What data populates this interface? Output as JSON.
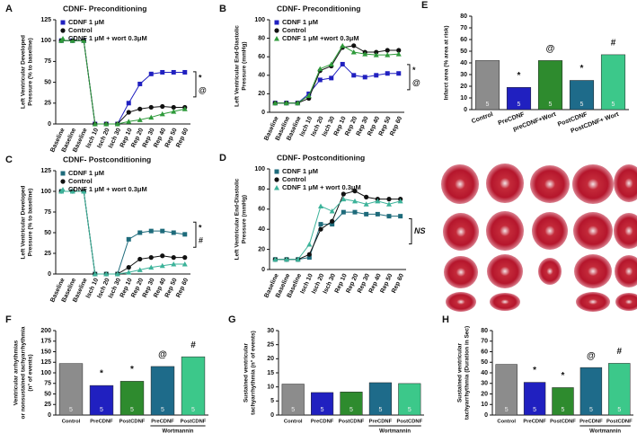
{
  "chart_data": [
    {
      "type": "line",
      "panel": "A",
      "title": "CDNF- Preconditioning",
      "ylabel": [
        "Left Ventricular Developed",
        "Pressure (% to baseline)"
      ],
      "categories": [
        "Baseline",
        "Baseline",
        "Baseline",
        "Isch 10",
        "Isch 20",
        "Isch 30",
        "Rep 10",
        "Rep 20",
        "Rep 30",
        "Rep 40",
        "Rep 50",
        "Rep 60"
      ],
      "series": [
        {
          "name": "CDNF 1 μM",
          "color": "#2020c0",
          "marker": "square",
          "values": [
            100,
            100,
            100,
            0,
            0,
            0,
            25,
            48,
            60,
            62,
            62,
            62
          ]
        },
        {
          "name": "Control",
          "color": "#111111",
          "marker": "circle",
          "values": [
            100,
            100,
            100,
            0,
            0,
            0,
            14,
            18,
            20,
            21,
            20,
            20
          ]
        },
        {
          "name": "CDNF 1 μM + wort 0.3μM",
          "color": "#2e9a3a",
          "marker": "triangle",
          "values": [
            100,
            100,
            100,
            0,
            0,
            0,
            3,
            5,
            8,
            12,
            15,
            18
          ]
        }
      ],
      "ylim": [
        0,
        125
      ],
      "yticks": [
        0,
        25,
        50,
        75,
        100,
        125
      ],
      "legend": "top-left",
      "annotations": [
        "*",
        "@"
      ]
    },
    {
      "type": "line",
      "panel": "B",
      "title": "CDNF- Preconditioning",
      "ylabel": [
        "Left Ventricular End-Diastolic",
        "Pressure (mmHg)"
      ],
      "categories": [
        "Baseline",
        "Baseline",
        "Baseline",
        "Isch 10",
        "Isch 20",
        "Isch 30",
        "Rep 10",
        "Rep 20",
        "Rep 30",
        "Rep 40",
        "Rep 50",
        "Rep 60"
      ],
      "series": [
        {
          "name": "CDNF 1 μM",
          "color": "#2020c0",
          "marker": "square",
          "values": [
            10,
            10,
            10,
            20,
            35,
            37,
            52,
            40,
            38,
            40,
            42,
            42
          ]
        },
        {
          "name": "Control",
          "color": "#111111",
          "marker": "circle",
          "values": [
            10,
            10,
            10,
            15,
            45,
            50,
            70,
            72,
            65,
            65,
            67,
            67
          ]
        },
        {
          "name": "CDNF 1 μM +wort 0.3μM",
          "color": "#2e9a3a",
          "marker": "triangle",
          "values": [
            10,
            10,
            10,
            18,
            47,
            52,
            72,
            65,
            63,
            62,
            62,
            63
          ]
        }
      ],
      "ylim": [
        0,
        100
      ],
      "yticks": [
        0,
        20,
        40,
        60,
        80,
        100
      ],
      "legend": "top-left",
      "annotations": [
        "*",
        "@"
      ]
    },
    {
      "type": "bar",
      "panel": "E",
      "ylabel": [
        "Infarct area (% area at risk)"
      ],
      "categories": [
        "Control",
        "PreCDNF",
        "preCDNF+Wort",
        "PostCDNF",
        "PostCDNF+ Wort"
      ],
      "values": [
        42,
        19,
        42,
        25,
        47
      ],
      "colors": [
        "#8c8c8c",
        "#2020c0",
        "#2e8b2e",
        "#1e6b8a",
        "#3cc88a"
      ],
      "n": [
        5,
        5,
        5,
        5,
        5
      ],
      "bar_annotations": [
        null,
        "*",
        "@",
        "*",
        "#"
      ],
      "ylim": [
        0,
        80
      ],
      "yticks": [
        0,
        10,
        20,
        30,
        40,
        50,
        60,
        70,
        80
      ],
      "rotate_labels": true
    },
    {
      "type": "line",
      "panel": "C",
      "title": "CDNF- Postconditioning",
      "ylabel": [
        "Left Ventricular Developed",
        "Pressure (% to baseline)"
      ],
      "categories": [
        "Baseline",
        "Baseline",
        "Baseline",
        "Isch 10",
        "Isch 20",
        "Isch 30",
        "Rep 10",
        "Rep 20",
        "Rep 30",
        "Rep 40",
        "Rep 50",
        "Rep 60"
      ],
      "series": [
        {
          "name": "CDNF 1 μM",
          "color": "#1e6b7b",
          "marker": "square",
          "values": [
            100,
            100,
            100,
            0,
            0,
            0,
            42,
            50,
            52,
            52,
            50,
            48
          ]
        },
        {
          "name": "Control",
          "color": "#111111",
          "marker": "circle",
          "values": [
            100,
            100,
            100,
            0,
            0,
            0,
            8,
            18,
            20,
            22,
            20,
            20
          ]
        },
        {
          "name": "CDNF 1 μM + wort 0.3μM",
          "color": "#3cb39a",
          "marker": "triangle",
          "values": [
            100,
            100,
            100,
            0,
            0,
            0,
            2,
            5,
            8,
            10,
            12,
            12
          ]
        }
      ],
      "ylim": [
        0,
        125
      ],
      "yticks": [
        0,
        25,
        50,
        75,
        100,
        125
      ],
      "legend": "top-left",
      "annotations": [
        "*",
        "#"
      ]
    },
    {
      "type": "line",
      "panel": "D",
      "title": "CDNF- Postconditioning",
      "ylabel": [
        "Left Ventricular End-Diastolic",
        "Pressure (mmHg)"
      ],
      "categories": [
        "Baseline",
        "Baseline",
        "Baseline",
        "Isch 10",
        "Isch 20",
        "Isch 30",
        "Rep 10",
        "Rep 20",
        "Rep 30",
        "Rep 40",
        "Rep 50",
        "Rep 60"
      ],
      "series": [
        {
          "name": "CDNF 1 μM",
          "color": "#1e6b7b",
          "marker": "square",
          "values": [
            10,
            10,
            10,
            12,
            45,
            45,
            57,
            57,
            55,
            55,
            53,
            53
          ]
        },
        {
          "name": "Control",
          "color": "#111111",
          "marker": "circle",
          "values": [
            10,
            10,
            10,
            15,
            40,
            48,
            75,
            78,
            72,
            70,
            70,
            70
          ]
        },
        {
          "name": "CDNF 1 μM + wort 0.3μM",
          "color": "#3cb39a",
          "marker": "triangle",
          "values": [
            10,
            10,
            10,
            25,
            63,
            58,
            70,
            68,
            65,
            68,
            65,
            68
          ]
        }
      ],
      "ylim": [
        0,
        100
      ],
      "yticks": [
        0,
        20,
        40,
        60,
        80,
        100
      ],
      "legend": "top-left",
      "annotations": [
        "NS"
      ]
    },
    {
      "type": "bar",
      "panel": "F",
      "ylabel": [
        "Ventricular arrhythmias",
        "or nonsustained tachyarrhythmia",
        "(n° of events)"
      ],
      "categories": [
        "Control",
        "PreCDNF",
        "PostCDNF",
        "PreCDNF",
        "PostCDNF"
      ],
      "group_label": "Wortmannin",
      "values": [
        122,
        70,
        80,
        115,
        138
      ],
      "colors": [
        "#8c8c8c",
        "#2020c0",
        "#2e8b2e",
        "#1e6b8a",
        "#3cc88a"
      ],
      "n": [
        5,
        5,
        5,
        5,
        5
      ],
      "bar_annotations": [
        null,
        "*",
        "*",
        "@",
        "#"
      ],
      "ylim": [
        0,
        200
      ],
      "yticks": [
        0,
        25,
        50,
        75,
        100,
        125,
        150,
        175,
        200
      ]
    },
    {
      "type": "bar",
      "panel": "G",
      "ylabel": [
        "Sustained ventricular",
        "tachyarrhythmia (n° of events)"
      ],
      "categories": [
        "Control",
        "PreCDNF",
        "PostCDNF",
        "PreCDNF",
        "PostCDNF"
      ],
      "group_label": "Wortmannin",
      "values": [
        11,
        8,
        8.2,
        11.5,
        11.2
      ],
      "colors": [
        "#8c8c8c",
        "#2020c0",
        "#2e8b2e",
        "#1e6b8a",
        "#3cc88a"
      ],
      "n": [
        5,
        5,
        5,
        5,
        5
      ],
      "ylim": [
        0,
        30
      ],
      "yticks": [
        0,
        5,
        10,
        15,
        20,
        25,
        30
      ]
    },
    {
      "type": "bar",
      "panel": "H",
      "ylabel": [
        "Sustained ventricular",
        "tachyarrhythmia (Duration in Sec)"
      ],
      "categories": [
        "Control",
        "PreCDNF",
        "PostCDNF",
        "PreCDNF",
        "PostCDNF"
      ],
      "group_label": "Wortmannin",
      "values": [
        48,
        31,
        26,
        45,
        49
      ],
      "colors": [
        "#8c8c8c",
        "#2020c0",
        "#2e8b2e",
        "#1e6b8a",
        "#3cc88a"
      ],
      "n": [
        5,
        5,
        5,
        5,
        5
      ],
      "bar_annotations": [
        null,
        "*",
        "*",
        "@",
        "#"
      ],
      "ylim": [
        0,
        80
      ],
      "yticks": [
        0,
        10,
        20,
        30,
        40,
        50,
        60,
        70,
        80
      ]
    }
  ]
}
